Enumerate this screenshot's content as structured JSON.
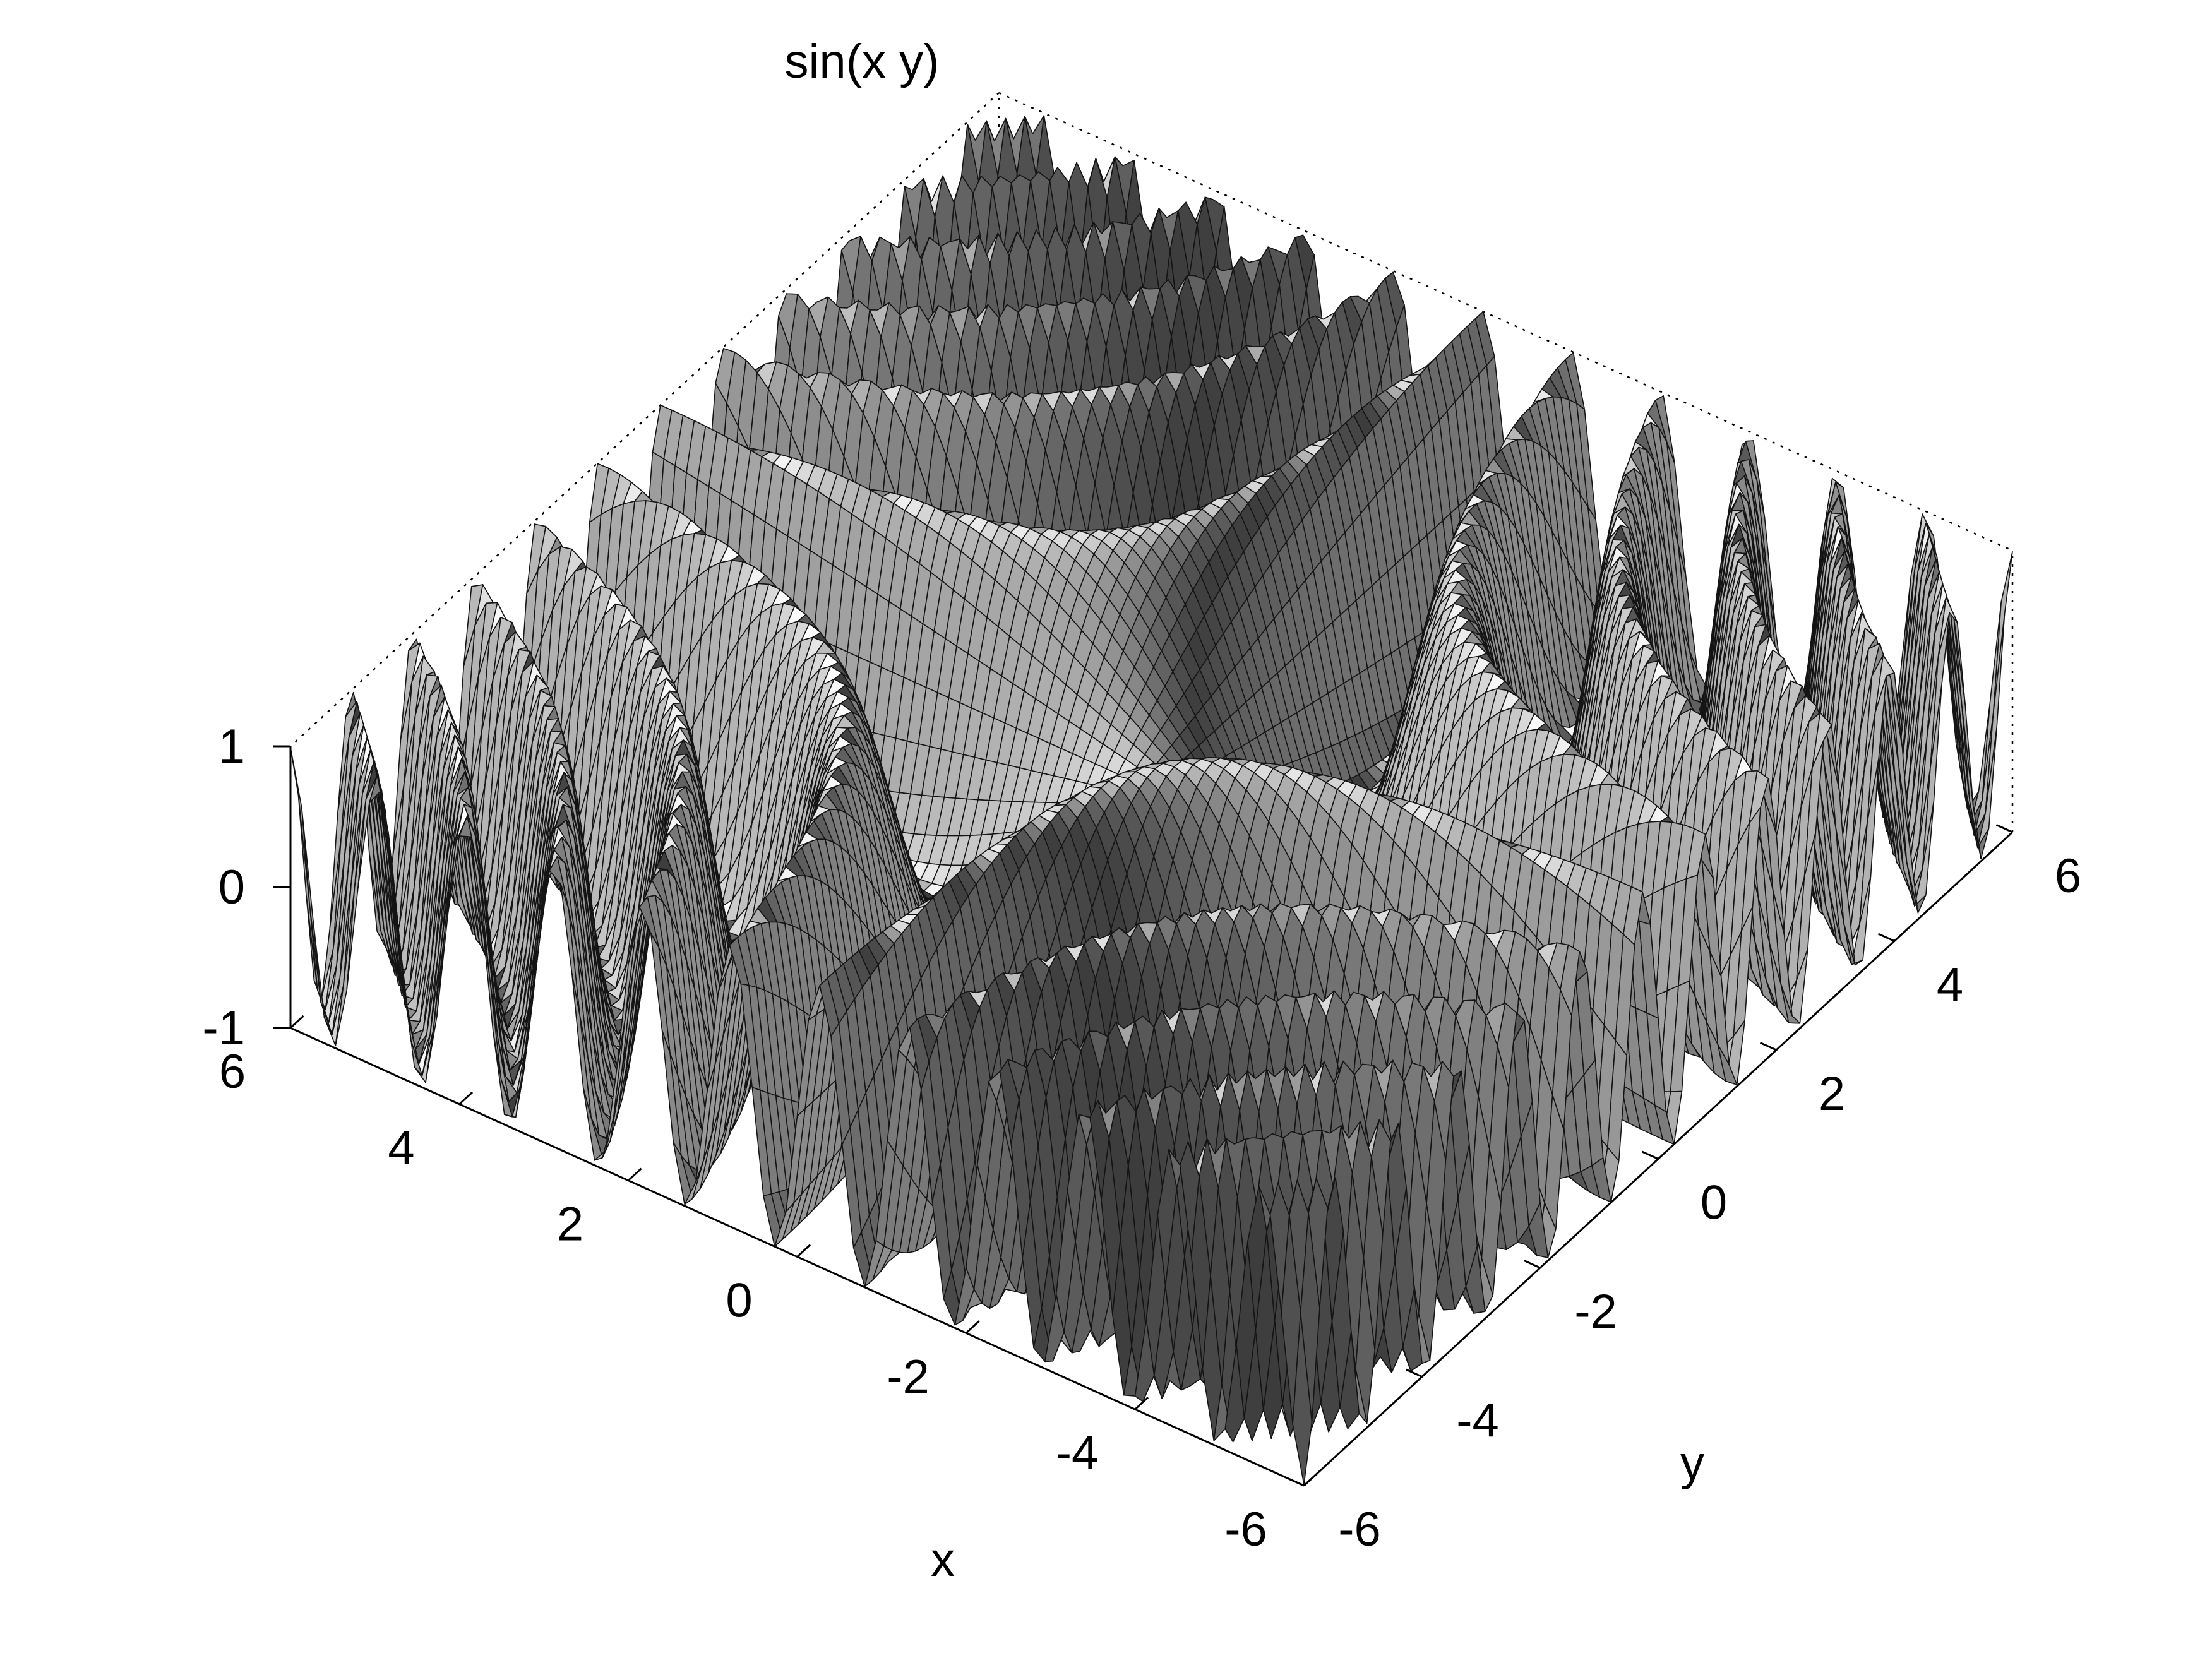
{
  "chart_data": {
    "type": "surface",
    "title": "sin(x y)",
    "function": "sin(x y)",
    "xlabel": "x",
    "ylabel": "y",
    "zlabel": "",
    "xlim": [
      -6,
      6
    ],
    "ylim": [
      -6,
      6
    ],
    "zlim": [
      -1,
      1
    ],
    "x_ticks": [
      -6,
      -4,
      -2,
      0,
      2,
      4,
      6
    ],
    "y_ticks": [
      -6,
      -4,
      -2,
      0,
      2,
      4,
      6
    ],
    "z_ticks": [
      -1,
      0,
      1
    ],
    "x_tick_labels": [
      "-6",
      "-4",
      "-2",
      "0",
      "2",
      "4",
      "6"
    ],
    "y_tick_labels": [
      "-6",
      "-4",
      "-2",
      "0",
      "2",
      "4",
      "6"
    ],
    "z_tick_labels": [
      "-1",
      "0",
      "1"
    ],
    "grid": false,
    "box": "dotted back edges",
    "style": "hidden-line mesh, grayscale shading",
    "colors": {
      "mesh_line": "#141414",
      "background": "#ffffff",
      "axis": "#000000"
    }
  }
}
